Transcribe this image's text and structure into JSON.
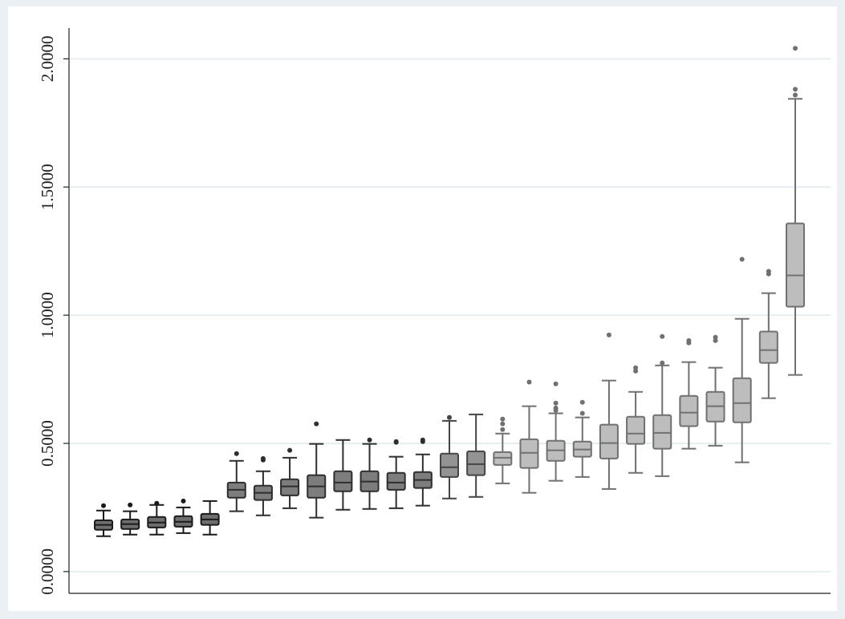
{
  "chart_data": {
    "type": "box",
    "ylim": [
      -0.085,
      2.12
    ],
    "yticks": [
      {
        "value": 0,
        "label": "0.0000"
      },
      {
        "value": 0.5,
        "label": "0.5000"
      },
      {
        "value": 1,
        "label": "1.0000"
      },
      {
        "value": 1.5,
        "label": "1.5000"
      },
      {
        "value": 2,
        "label": "2.0000"
      }
    ],
    "grid": true,
    "boxes": [
      {
        "color": "#6e6e6e",
        "edge_color": "#1a1a1a",
        "whisker_low": 0.138,
        "q1": 0.163,
        "median": 0.182,
        "q3": 0.2,
        "whisker_high": 0.238,
        "outliers": [
          0.257
        ]
      },
      {
        "color": "#6e6e6e",
        "edge_color": "#1a1a1a",
        "whisker_low": 0.144,
        "q1": 0.166,
        "median": 0.185,
        "q3": 0.203,
        "whisker_high": 0.235,
        "outliers": [
          0.26
        ]
      },
      {
        "color": "#6e6e6e",
        "edge_color": "#1a1a1a",
        "whisker_low": 0.144,
        "q1": 0.172,
        "median": 0.191,
        "q3": 0.213,
        "whisker_high": 0.26,
        "outliers": [
          0.266
        ]
      },
      {
        "color": "#6e6e6e",
        "edge_color": "#1a1a1a",
        "whisker_low": 0.15,
        "q1": 0.175,
        "median": 0.194,
        "q3": 0.216,
        "whisker_high": 0.25,
        "outliers": [
          0.275
        ]
      },
      {
        "color": "#6e6e6e",
        "edge_color": "#1a1a1a",
        "whisker_low": 0.144,
        "q1": 0.182,
        "median": 0.203,
        "q3": 0.225,
        "whisker_high": 0.275,
        "outliers": []
      },
      {
        "color": "#7d7d7d",
        "edge_color": "#2e2e2e",
        "whisker_low": 0.235,
        "q1": 0.288,
        "median": 0.319,
        "q3": 0.347,
        "whisker_high": 0.432,
        "outliers": [
          0.46
        ]
      },
      {
        "color": "#7d7d7d",
        "edge_color": "#2e2e2e",
        "whisker_low": 0.219,
        "q1": 0.279,
        "median": 0.307,
        "q3": 0.335,
        "whisker_high": 0.391,
        "outliers": [
          0.441,
          0.435
        ]
      },
      {
        "color": "#7d7d7d",
        "edge_color": "#2e2e2e",
        "whisker_low": 0.247,
        "q1": 0.297,
        "median": 0.332,
        "q3": 0.36,
        "whisker_high": 0.444,
        "outliers": [
          0.473
        ]
      },
      {
        "color": "#7d7d7d",
        "edge_color": "#2e2e2e",
        "whisker_low": 0.21,
        "q1": 0.288,
        "median": 0.332,
        "q3": 0.376,
        "whisker_high": 0.498,
        "outliers": [
          0.576
        ]
      },
      {
        "color": "#7d7d7d",
        "edge_color": "#2e2e2e",
        "whisker_low": 0.241,
        "q1": 0.313,
        "median": 0.347,
        "q3": 0.391,
        "whisker_high": 0.513,
        "outliers": []
      },
      {
        "color": "#7d7d7d",
        "edge_color": "#2e2e2e",
        "whisker_low": 0.244,
        "q1": 0.313,
        "median": 0.351,
        "q3": 0.391,
        "whisker_high": 0.498,
        "outliers": [
          0.513
        ]
      },
      {
        "color": "#7d7d7d",
        "edge_color": "#2e2e2e",
        "whisker_low": 0.247,
        "q1": 0.319,
        "median": 0.347,
        "q3": 0.385,
        "whisker_high": 0.448,
        "outliers": [
          0.507,
          0.504
        ]
      },
      {
        "color": "#7d7d7d",
        "edge_color": "#2e2e2e",
        "whisker_low": 0.257,
        "q1": 0.326,
        "median": 0.357,
        "q3": 0.388,
        "whisker_high": 0.457,
        "outliers": [
          0.513,
          0.507
        ]
      },
      {
        "color": "#939393",
        "edge_color": "#444444",
        "whisker_low": 0.285,
        "q1": 0.369,
        "median": 0.407,
        "q3": 0.46,
        "whisker_high": 0.588,
        "outliers": [
          0.601
        ]
      },
      {
        "color": "#939393",
        "edge_color": "#444444",
        "whisker_low": 0.291,
        "q1": 0.376,
        "median": 0.419,
        "q3": 0.469,
        "whisker_high": 0.613,
        "outliers": []
      },
      {
        "color": "#bdbdbd",
        "edge_color": "#707070",
        "whisker_low": 0.344,
        "q1": 0.416,
        "median": 0.444,
        "q3": 0.466,
        "whisker_high": 0.538,
        "outliers": [
          0.595,
          0.576,
          0.554
        ]
      },
      {
        "color": "#bdbdbd",
        "edge_color": "#707070",
        "whisker_low": 0.307,
        "q1": 0.404,
        "median": 0.463,
        "q3": 0.516,
        "whisker_high": 0.645,
        "outliers": [
          0.739
        ]
      },
      {
        "color": "#bdbdbd",
        "edge_color": "#707070",
        "whisker_low": 0.354,
        "q1": 0.432,
        "median": 0.473,
        "q3": 0.51,
        "whisker_high": 0.617,
        "outliers": [
          0.732,
          0.657,
          0.638,
          0.629
        ]
      },
      {
        "color": "#bdbdbd",
        "edge_color": "#707070",
        "whisker_low": 0.369,
        "q1": 0.448,
        "median": 0.476,
        "q3": 0.507,
        "whisker_high": 0.601,
        "outliers": [
          0.66,
          0.617
        ]
      },
      {
        "color": "#bdbdbd",
        "edge_color": "#707070",
        "whisker_low": 0.322,
        "q1": 0.441,
        "median": 0.501,
        "q3": 0.573,
        "whisker_high": 0.745,
        "outliers": [
          0.923
        ]
      },
      {
        "color": "#bdbdbd",
        "edge_color": "#707070",
        "whisker_low": 0.385,
        "q1": 0.498,
        "median": 0.538,
        "q3": 0.604,
        "whisker_high": 0.701,
        "outliers": [
          0.795,
          0.782
        ]
      },
      {
        "color": "#bdbdbd",
        "edge_color": "#707070",
        "whisker_low": 0.372,
        "q1": 0.479,
        "median": 0.541,
        "q3": 0.61,
        "whisker_high": 0.804,
        "outliers": [
          0.917,
          0.814
        ]
      },
      {
        "color": "#bdbdbd",
        "edge_color": "#707070",
        "whisker_low": 0.479,
        "q1": 0.567,
        "median": 0.62,
        "q3": 0.685,
        "whisker_high": 0.817,
        "outliers": [
          0.901,
          0.892
        ]
      },
      {
        "color": "#bdbdbd",
        "edge_color": "#707070",
        "whisker_low": 0.491,
        "q1": 0.585,
        "median": 0.645,
        "q3": 0.701,
        "whisker_high": 0.795,
        "outliers": [
          0.914,
          0.901
        ]
      },
      {
        "color": "#bdbdbd",
        "edge_color": "#707070",
        "whisker_low": 0.426,
        "q1": 0.582,
        "median": 0.657,
        "q3": 0.754,
        "whisker_high": 0.986,
        "outliers": [
          1.218
        ]
      },
      {
        "color": "#bdbdbd",
        "edge_color": "#707070",
        "whisker_low": 0.676,
        "q1": 0.814,
        "median": 0.864,
        "q3": 0.936,
        "whisker_high": 1.086,
        "outliers": [
          1.171,
          1.161
        ]
      },
      {
        "color": "#bdbdbd",
        "edge_color": "#707070",
        "whisker_low": 0.767,
        "q1": 1.033,
        "median": 1.155,
        "q3": 1.358,
        "whisker_high": 1.844,
        "outliers": [
          2.041,
          1.881,
          1.859
        ]
      }
    ]
  }
}
